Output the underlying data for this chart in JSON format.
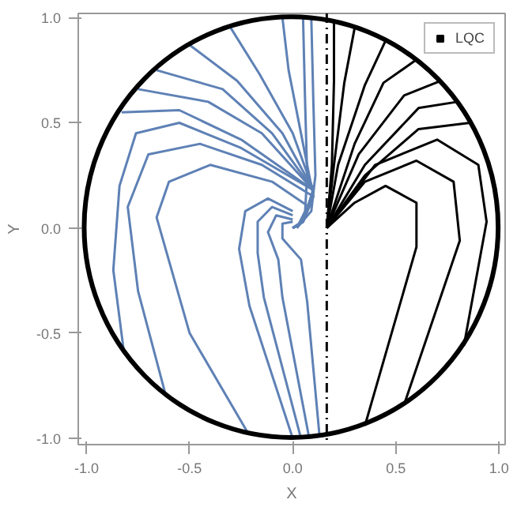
{
  "chart_data": {
    "type": "line",
    "xlabel": "X",
    "ylabel": "Y",
    "xlim": [
      -1.04,
      1.03
    ],
    "ylim": [
      -1.03,
      1.02
    ],
    "xticks": [
      {
        "value": -1,
        "label": "-1.0"
      },
      {
        "value": -0.5,
        "label": "-0.5"
      },
      {
        "value": 0,
        "label": "0.0"
      },
      {
        "value": 0.5,
        "label": "0.5"
      },
      {
        "value": 1,
        "label": "1.0"
      }
    ],
    "yticks": [
      {
        "value": -1,
        "label": "-1.0"
      },
      {
        "value": -0.5,
        "label": "-0.5"
      },
      {
        "value": 0,
        "label": "0.0"
      },
      {
        "value": 0.5,
        "label": "0.5"
      },
      {
        "value": 1,
        "label": "1.0"
      }
    ],
    "grid": false,
    "legend": "top right",
    "line_style": "solid",
    "ref_lines": [
      {
        "axis": "x",
        "value": 0.165,
        "label": null,
        "color": "#000000",
        "line_style": "dashed"
      }
    ],
    "series": [
      {
        "color": "#5e81b5",
        "x": [
          0.05,
          0.06,
          0.07,
          0.06,
          0.02
        ],
        "values": [
          1.0,
          0.6,
          0.25,
          0.08,
          0.0
        ]
      },
      {
        "color": "#5e81b5",
        "x": [
          0.09,
          0.1,
          0.11,
          0.09,
          0.02
        ],
        "values": [
          1.0,
          0.6,
          0.25,
          0.08,
          0.0
        ]
      },
      {
        "color": "#5e81b5",
        "x": [
          -0.05,
          -0.02,
          0.05,
          0.1,
          0.05,
          0.0
        ],
        "values": [
          1.0,
          0.75,
          0.4,
          0.15,
          0.03,
          0.0
        ]
      },
      {
        "color": "#5e81b5",
        "x": [
          -0.3,
          -0.16,
          0.0,
          0.1,
          0.05,
          0.0
        ],
        "values": [
          0.95,
          0.73,
          0.45,
          0.18,
          0.03,
          0.0
        ]
      },
      {
        "color": "#5e81b5",
        "x": [
          -0.5,
          -0.27,
          -0.05,
          0.1,
          0.05,
          0.0
        ],
        "values": [
          0.87,
          0.7,
          0.45,
          0.18,
          0.03,
          0.0
        ]
      },
      {
        "color": "#5e81b5",
        "x": [
          -0.66,
          -0.34,
          -0.1,
          0.1,
          0.05,
          0.0
        ],
        "values": [
          0.75,
          0.66,
          0.45,
          0.18,
          0.03,
          0.0
        ]
      },
      {
        "color": "#5e81b5",
        "x": [
          -0.75,
          -0.41,
          -0.15,
          0.1,
          0.05,
          0.0
        ],
        "values": [
          0.66,
          0.6,
          0.45,
          0.18,
          0.03,
          0.0
        ]
      },
      {
        "color": "#5e81b5",
        "x": [
          -0.83,
          -0.55,
          -0.25,
          0.1,
          0.05,
          0.0
        ],
        "values": [
          0.55,
          0.56,
          0.42,
          0.18,
          0.03,
          0.0
        ]
      },
      {
        "color": "#5e81b5",
        "x": [
          -0.82,
          -0.87,
          -0.84,
          -0.76,
          -0.55,
          -0.25,
          0.1,
          0.05,
          0.0
        ],
        "values": [
          -0.58,
          -0.2,
          0.2,
          0.45,
          0.5,
          0.38,
          0.18,
          0.03,
          0.0
        ]
      },
      {
        "color": "#5e81b5",
        "x": [
          -0.62,
          -0.75,
          -0.8,
          -0.7,
          -0.45,
          -0.15,
          0.1,
          0.05,
          0.0
        ],
        "values": [
          -0.78,
          -0.3,
          0.1,
          0.35,
          0.4,
          0.3,
          0.15,
          0.03,
          0.0
        ]
      },
      {
        "color": "#5e81b5",
        "x": [
          -0.22,
          -0.5,
          -0.66,
          -0.6,
          -0.4,
          -0.1,
          0.08,
          0.03,
          0.0
        ],
        "values": [
          -0.97,
          -0.5,
          0.05,
          0.22,
          0.3,
          0.22,
          0.1,
          0.02,
          0.0
        ]
      },
      {
        "color": "#5e81b5",
        "x": [
          0.13,
          0.07,
          0.04,
          -0.05,
          -0.05,
          0.0
        ],
        "values": [
          -0.99,
          -0.35,
          -0.15,
          -0.05,
          0.02,
          0.03
        ]
      },
      {
        "color": "#5e81b5",
        "x": [
          0.08,
          -0.05,
          -0.07,
          -0.12,
          -0.08,
          0.0
        ],
        "values": [
          -1.0,
          -0.33,
          -0.15,
          -0.02,
          0.06,
          0.04
        ]
      },
      {
        "color": "#5e81b5",
        "x": [
          0.04,
          -0.14,
          -0.17,
          -0.17,
          -0.1,
          0.0
        ],
        "values": [
          -1.0,
          -0.33,
          -0.12,
          0.03,
          0.1,
          0.06
        ]
      },
      {
        "color": "#5e81b5",
        "x": [
          0.0,
          -0.21,
          -0.26,
          -0.23,
          -0.12,
          0.0
        ],
        "values": [
          -1.0,
          -0.37,
          -0.1,
          0.08,
          0.14,
          0.08
        ]
      },
      {
        "name": "LQC",
        "color": "#000000",
        "x": [
          0.2,
          0.2,
          0.19,
          0.165
        ],
        "values": [
          0.98,
          0.7,
          0.3,
          0.0
        ]
      },
      {
        "color": "#000000",
        "x": [
          0.3,
          0.25,
          0.2,
          0.165
        ],
        "values": [
          0.95,
          0.69,
          0.3,
          0.0
        ]
      },
      {
        "color": "#000000",
        "x": [
          0.45,
          0.35,
          0.22,
          0.165
        ],
        "values": [
          0.89,
          0.68,
          0.3,
          0.0
        ]
      },
      {
        "color": "#000000",
        "x": [
          0.6,
          0.44,
          0.3,
          0.165
        ],
        "values": [
          0.8,
          0.69,
          0.4,
          0.0
        ]
      },
      {
        "color": "#000000",
        "x": [
          0.72,
          0.54,
          0.32,
          0.165
        ],
        "values": [
          0.7,
          0.63,
          0.35,
          0.0
        ]
      },
      {
        "color": "#000000",
        "x": [
          0.8,
          0.61,
          0.35,
          0.165
        ],
        "values": [
          0.6,
          0.57,
          0.3,
          0.0
        ]
      },
      {
        "color": "#000000",
        "x": [
          0.86,
          0.61,
          0.35,
          0.165
        ],
        "values": [
          0.5,
          0.47,
          0.25,
          0.0
        ]
      },
      {
        "color": "#000000",
        "x": [
          0.35,
          0.6,
          0.6,
          0.45,
          0.3,
          0.165
        ],
        "values": [
          -0.94,
          -0.09,
          0.12,
          0.2,
          0.12,
          0.0
        ]
      },
      {
        "color": "#000000",
        "x": [
          0.54,
          0.81,
          0.78,
          0.6,
          0.35,
          0.165
        ],
        "values": [
          -0.84,
          -0.06,
          0.22,
          0.32,
          0.22,
          0.0
        ]
      },
      {
        "color": "#000000",
        "x": [
          0.83,
          0.94,
          0.9,
          0.7,
          0.4,
          0.165
        ],
        "values": [
          -0.56,
          0.03,
          0.3,
          0.42,
          0.3,
          0.0
        ]
      }
    ]
  }
}
